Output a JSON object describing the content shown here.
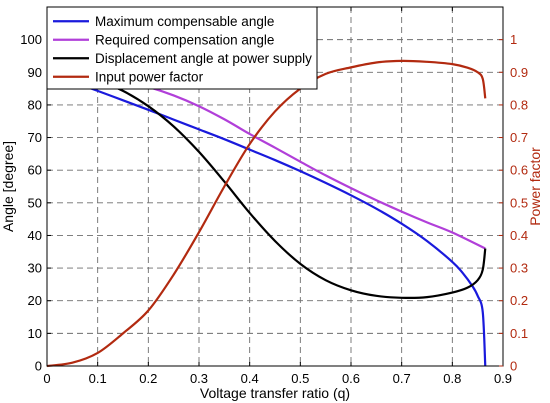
{
  "chart_data": {
    "type": "line",
    "xlabel": "Voltage transfer ratio (q)",
    "ylabel": "Angle [degree]",
    "y2label": "Power factor",
    "xlim": [
      0,
      0.9
    ],
    "ylim": [
      0,
      110
    ],
    "y2lim": [
      0,
      1.1
    ],
    "xticks": [
      "0",
      "0.1",
      "0.2",
      "0.3",
      "0.4",
      "0.5",
      "0.6",
      "0.7",
      "0.8",
      "0.9"
    ],
    "yticks": [
      "0",
      "10",
      "20",
      "30",
      "40",
      "50",
      "60",
      "70",
      "80",
      "90",
      "100"
    ],
    "y2ticks": [
      "0",
      "0.1",
      "0.2",
      "0.3",
      "0.4",
      "0.5",
      "0.6",
      "0.7",
      "0.8",
      "0.9",
      "1"
    ],
    "grid": true,
    "legend_position": "top-left",
    "series": [
      {
        "name": "Maximum compensable angle",
        "color": "#1a1adc",
        "axis": "left",
        "x": [
          0,
          0.05,
          0.1,
          0.15,
          0.2,
          0.25,
          0.3,
          0.35,
          0.4,
          0.45,
          0.5,
          0.55,
          0.6,
          0.65,
          0.7,
          0.75,
          0.8,
          0.82,
          0.84,
          0.85,
          0.86,
          0.865
        ],
        "y": [
          90,
          87.1,
          84.3,
          81.4,
          78.5,
          75.5,
          72.5,
          69.5,
          66.3,
          63.1,
          59.7,
          56.1,
          52.3,
          48.2,
          43.6,
          38.3,
          31.9,
          28.6,
          24.4,
          21.5,
          16.6,
          0
        ]
      },
      {
        "name": "Required compensation angle",
        "color": "#b13fd9",
        "axis": "left",
        "x": [
          0,
          0.05,
          0.1,
          0.15,
          0.2,
          0.25,
          0.3,
          0.35,
          0.4,
          0.45,
          0.5,
          0.55,
          0.6,
          0.65,
          0.7,
          0.75,
          0.8,
          0.865
        ],
        "y": [
          90,
          89.7,
          88.9,
          87.5,
          85.5,
          82.9,
          79.6,
          75.6,
          71.1,
          66.9,
          62.6,
          58.4,
          54.5,
          50.8,
          47.3,
          44.0,
          40.9,
          36.0
        ]
      },
      {
        "name": "Displacement angle at power supply",
        "color": "#000000",
        "axis": "left",
        "x": [
          0,
          0.05,
          0.1,
          0.15,
          0.2,
          0.25,
          0.3,
          0.35,
          0.4,
          0.45,
          0.5,
          0.55,
          0.6,
          0.65,
          0.7,
          0.75,
          0.8,
          0.83,
          0.85,
          0.86,
          0.865
        ],
        "y": [
          90,
          89.4,
          87.5,
          84.3,
          79.6,
          73.4,
          65.6,
          56.5,
          46.9,
          38.3,
          31.3,
          26.3,
          23.2,
          21.5,
          20.9,
          21.1,
          22.5,
          24.0,
          26.3,
          29.5,
          36.0
        ]
      },
      {
        "name": "Input power factor",
        "color": "#b22a10",
        "axis": "right",
        "x": [
          0,
          0.05,
          0.1,
          0.15,
          0.2,
          0.25,
          0.3,
          0.35,
          0.4,
          0.45,
          0.5,
          0.55,
          0.6,
          0.65,
          0.7,
          0.75,
          0.8,
          0.83,
          0.85,
          0.86,
          0.865
        ],
        "y": [
          0.0,
          0.01,
          0.04,
          0.1,
          0.17,
          0.28,
          0.41,
          0.55,
          0.68,
          0.78,
          0.85,
          0.895,
          0.915,
          0.93,
          0.935,
          0.932,
          0.925,
          0.914,
          0.9,
          0.88,
          0.82
        ]
      }
    ]
  }
}
